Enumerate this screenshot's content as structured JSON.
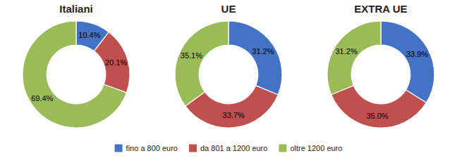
{
  "chart_data": [
    {
      "type": "pie",
      "title": "Italiani",
      "values": [
        10.4,
        20.1,
        69.4
      ],
      "value_labels": [
        "10.4%",
        "20.1%",
        "69.4%"
      ],
      "colors": [
        "#4472C4",
        "#C0504D",
        "#9BBB59"
      ],
      "data_labels": true,
      "categories": [
        "fino a 800 euro",
        "da 801 a 1200 euro",
        "oltre 1200 euro"
      ],
      "legend": "bottom"
    },
    {
      "type": "pie",
      "title": "UE",
      "values": [
        31.2,
        33.7,
        35.1
      ],
      "value_labels": [
        "31.2%",
        "33.7%",
        "35.1%"
      ],
      "colors": [
        "#4472C4",
        "#C0504D",
        "#9BBB59"
      ],
      "data_labels": true
    },
    {
      "type": "pie",
      "title": "EXTRA UE",
      "values": [
        33.9,
        35.0,
        31.2
      ],
      "value_labels": [
        "33.9%",
        "35.0%",
        "31.2%"
      ],
      "colors": [
        "#4472C4",
        "#C0504D",
        "#9BBB59"
      ],
      "data_labels": true
    }
  ]
}
